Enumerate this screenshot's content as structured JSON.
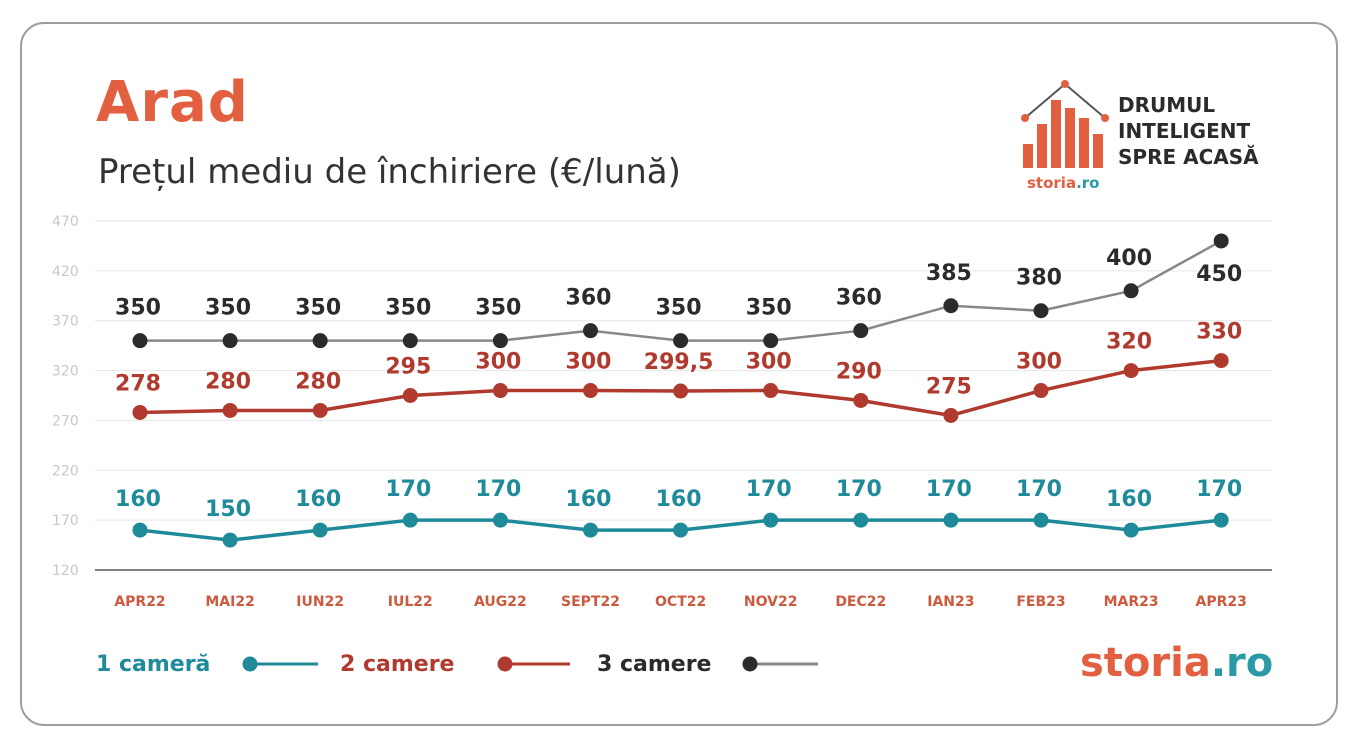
{
  "chart_data": {
    "type": "line",
    "title": "Arad",
    "subtitle": "Prețul mediu de închiriere (€/lună)",
    "categories": [
      "APR22",
      "MAI22",
      "IUN22",
      "IUL22",
      "AUG22",
      "SEPT22",
      "OCT22",
      "NOV22",
      "DEC22",
      "IAN23",
      "FEB23",
      "MAR23",
      "APR23"
    ],
    "y_ticks": [
      "470",
      "420",
      "370",
      "320",
      "270",
      "220",
      "170",
      "120"
    ],
    "ylim": [
      120,
      470
    ],
    "grid": true,
    "legend_position": "bottom-left",
    "series": [
      {
        "name": "1 cameră",
        "color": "#1f8a99",
        "values": [
          160,
          150,
          160,
          170,
          170,
          160,
          160,
          170,
          170,
          170,
          170,
          160,
          170
        ],
        "labels": [
          "160",
          "150",
          "160",
          "170",
          "170",
          "160",
          "160",
          "170",
          "170",
          "170",
          "170",
          "160",
          "170"
        ]
      },
      {
        "name": "2 camere",
        "color": "#b03a2e",
        "values": [
          278,
          280,
          280,
          295,
          300,
          300,
          299.5,
          300,
          290,
          275,
          300,
          320,
          330
        ],
        "labels": [
          "278",
          "280",
          "280",
          "295",
          "300",
          "300",
          "299,5",
          "300",
          "290",
          "275",
          "300",
          "320",
          "330"
        ]
      },
      {
        "name": "3 camere",
        "color": "#2b2b2b",
        "line_color": "#888888",
        "values": [
          350,
          350,
          350,
          350,
          350,
          360,
          350,
          350,
          360,
          385,
          380,
          400,
          450
        ],
        "labels": [
          "350",
          "350",
          "350",
          "350",
          "350",
          "360",
          "350",
          "350",
          "360",
          "385",
          "380",
          "400",
          "450"
        ]
      }
    ]
  },
  "logo": {
    "line1": "DRUMUL",
    "line2": "INTELIGENT",
    "line3": "SPRE ACASĂ",
    "brand_main": "storia",
    "brand_suffix": ".ro"
  },
  "brand": {
    "main": "storia",
    "suffix": ".ro"
  },
  "colors": {
    "accent": "#e2603f",
    "teal": "#2a9aa6",
    "tick_label": "#cc5a3e"
  }
}
